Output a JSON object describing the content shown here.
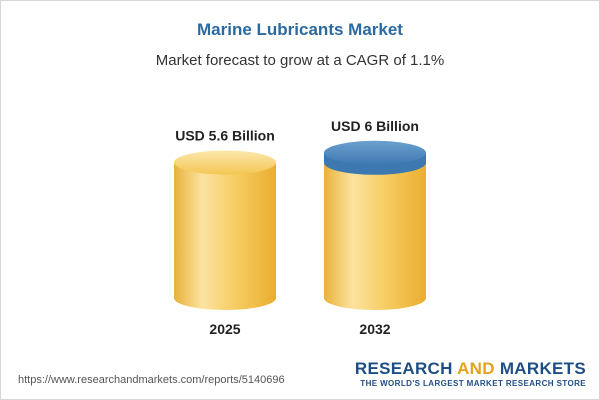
{
  "header": {
    "title": "Marine Lubricants Market",
    "subtitle": "Market forecast to grow at a CAGR of 1.1%"
  },
  "chart_data": {
    "type": "bar",
    "categories": [
      "2025",
      "2032"
    ],
    "values": [
      5.6,
      6
    ],
    "data_labels": [
      "USD 5.6 Billion",
      "USD 6 Billion"
    ],
    "unit": "USD Billion",
    "colors": {
      "body": "#f7cc5f",
      "body_light": "#fbe6a6",
      "body_dark": "#e8ad2e",
      "top_highlight": "#5b93c6",
      "top_dark": "#3e78b0"
    }
  },
  "footer": {
    "url": "https://www.researchandmarkets.com/reports/5140696",
    "brand_part1": "RESEARCH ",
    "brand_part2": "AND",
    "brand_part3": " MARKETS",
    "tagline": "THE WORLD'S LARGEST MARKET RESEARCH STORE"
  }
}
